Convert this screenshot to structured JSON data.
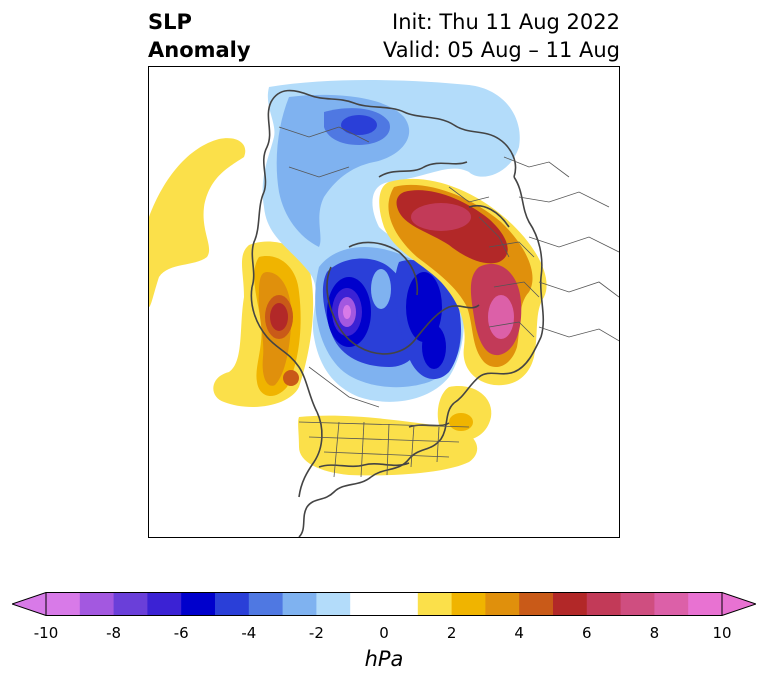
{
  "header": {
    "title_line1": "SLP",
    "title_line2": "Anomaly",
    "init_text": "Init: Thu 11 Aug 2022",
    "valid_text": "Valid: 05 Aug – 11 Aug"
  },
  "colorbar": {
    "units": "hPa",
    "tick_labels": [
      "-10",
      "-8",
      "-6",
      "-4",
      "-2",
      "0",
      "2",
      "4",
      "6",
      "8",
      "10"
    ],
    "tick_values": [
      -10,
      -8,
      -6,
      -4,
      -2,
      0,
      2,
      4,
      6,
      8,
      10
    ],
    "colors": [
      "#d87ae8",
      "#a358e0",
      "#6a3fd9",
      "#3b22d4",
      "#0000cc",
      "#2a3fd8",
      "#4f78e2",
      "#7fb2f0",
      "#b3dcfa",
      "#ffffff",
      "#ffffff",
      "#fbe04a",
      "#f0b400",
      "#e0900c",
      "#c95a18",
      "#b22828",
      "#c23a58",
      "#cf4e80",
      "#dc60a8",
      "#e872d2"
    ],
    "extend": "both"
  },
  "map": {
    "projection": "north polar stereographic",
    "variable": "sea level pressure anomaly",
    "features": [
      {
        "name": "negative-anomaly-arctic-center",
        "value_hpa": -7
      },
      {
        "name": "negative-anomaly-arctic-east",
        "value_hpa": -6
      },
      {
        "name": "negative-anomaly-north-pacific",
        "value_hpa": -5
      },
      {
        "name": "positive-anomaly-europe-scandinavia",
        "value_hpa": 7
      },
      {
        "name": "positive-anomaly-russia",
        "value_hpa": 8
      },
      {
        "name": "positive-anomaly-gulf-of-alaska",
        "value_hpa": 5
      },
      {
        "name": "positive-anomaly-north-america",
        "value_hpa": 1
      },
      {
        "name": "positive-anomaly-atlantic",
        "value_hpa": 3
      }
    ]
  }
}
